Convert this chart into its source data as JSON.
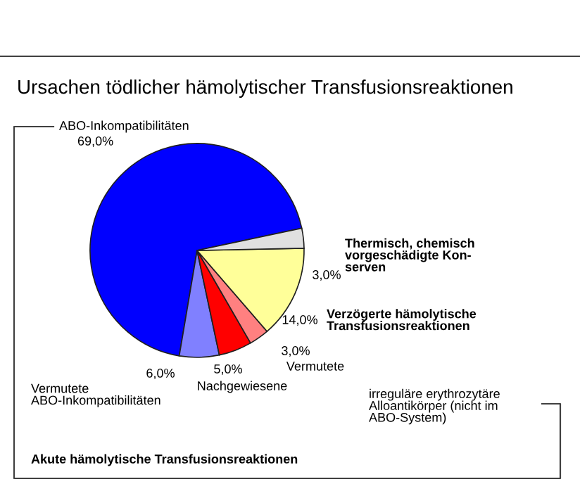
{
  "chart_data": {
    "type": "pie",
    "title": "Ursachen tödlicher hämolytischer Transfusionsreaktionen",
    "categories": [
      "ABO-Inkompatibilitäten",
      "Vermutete\nABO-Inkompatibilitäten",
      "Nachgewiesene",
      "Vermutete",
      "Verzögerte hämolytische\nTransfusionsreaktionen",
      "Thermisch, chemisch\nvorgeschädigte Kon-\nserven"
    ],
    "values": [
      69.0,
      6.0,
      5.0,
      3.0,
      14.0,
      3.0
    ],
    "value_labels": [
      "69,0%",
      "6,0%",
      "5,0%",
      "3,0%",
      "14,0%",
      "3,0%"
    ],
    "colors": [
      "#0000ff",
      "#8080ff",
      "#ff0000",
      "#ff8080",
      "#ffff99",
      "#e0e0e0"
    ],
    "annotations": [
      "irreguläre erythrozytäre\nAlloantikörper (nicht im\nABO-System)",
      "Akute hämolytische Transfusionsreaktionen"
    ],
    "legend": false
  }
}
